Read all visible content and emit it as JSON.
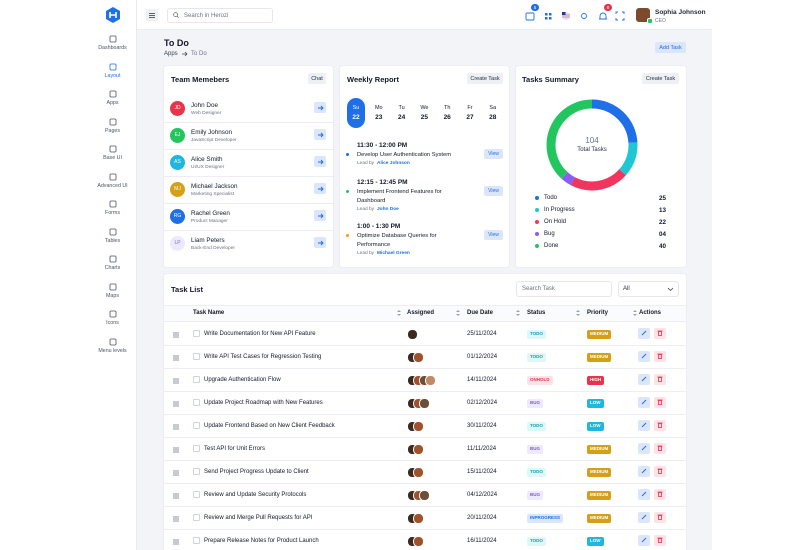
{
  "sidebar": {
    "items": [
      "Dashboards",
      "Layout",
      "Apps",
      "Pages",
      "Base UI",
      "Advanced UI",
      "Forms",
      "Tables",
      "Charts",
      "Maps",
      "Icons",
      "Menu levels"
    ],
    "active": 1
  },
  "header": {
    "search_placeholder": "Search in Herozi",
    "cart_badge": 5,
    "bell_badge": 8,
    "user": {
      "name": "Sophia Johnson",
      "role": "CEO"
    }
  },
  "page": {
    "title": "To Do",
    "breadcrumb": [
      "Apps",
      "To Do"
    ],
    "add_button": "Add Task"
  },
  "team": {
    "title": "Team Memebers",
    "button": "Chat",
    "members": [
      {
        "initials": "JD",
        "name": "John Doe",
        "role": "Web Designer",
        "color": "#e8334a"
      },
      {
        "initials": "EJ",
        "name": "Emily Johnson",
        "role": "JavaScript Developer",
        "color": "#22c55e"
      },
      {
        "initials": "AS",
        "name": "Alice Smith",
        "role": "UI/UX Designer",
        "color": "#1fb6e0"
      },
      {
        "initials": "MJ",
        "name": "Michael Jackson",
        "role": "Marketing Specialist",
        "color": "#d4a017"
      },
      {
        "initials": "RG",
        "name": "Rachel Green",
        "role": "Product Manager",
        "color": "#1e6fe8"
      },
      {
        "initials": "LP",
        "name": "Liam Peters",
        "role": "Back-End Developer",
        "color": "#ede9fe"
      }
    ]
  },
  "weekly": {
    "title": "Weekly Report",
    "button": "Create Task",
    "days": [
      {
        "day": "Su",
        "date": 22
      },
      {
        "day": "Mo",
        "date": 23
      },
      {
        "day": "Tu",
        "date": 24
      },
      {
        "day": "We",
        "date": 25
      },
      {
        "day": "Th",
        "date": 26
      },
      {
        "day": "Fr",
        "date": 27
      },
      {
        "day": "Sa",
        "date": 28
      }
    ],
    "events": [
      {
        "time": "11:30 - 12:00 PM",
        "title": "Develop User Authentication System",
        "lead_prefix": "Lead by",
        "lead": "Alice Johnson",
        "button": "View",
        "color": "#1e6fe8"
      },
      {
        "time": "12:15 - 12:45 PM",
        "title": "Implement Frontend Features for Dashboard",
        "lead_prefix": "Lead by",
        "lead": "John Doe",
        "button": "View",
        "color": "#22c55e"
      },
      {
        "time": "1:00 - 1:30 PM",
        "title": "Optimize Database Queries for Performance",
        "lead_prefix": "Lead by",
        "lead": "Michael Green",
        "button": "View",
        "color": "#f59e0b"
      }
    ]
  },
  "summary": {
    "title": "Tasks Summary",
    "button": "Create Task",
    "total": 104,
    "total_label": "Total Tasks",
    "categories": [
      "Todo",
      "In Progress",
      "On Hold",
      "Bug",
      "Done"
    ],
    "values": [
      25,
      13,
      22,
      4,
      40
    ],
    "value_labels": [
      "25",
      "13",
      "22",
      "04",
      "40"
    ],
    "colors": [
      "#1e6fe8",
      "#1fc7d4",
      "#f0365e",
      "#8b5cf6",
      "#22c55e"
    ]
  },
  "task_list": {
    "title": "Task List",
    "search_placeholder": "Search Task",
    "filter": "All",
    "columns": [
      "Task Name",
      "Assigned",
      "Due Date",
      "Status",
      "Priority",
      "Actions"
    ],
    "rows": [
      {
        "name": "Write Documentation for New API Feature",
        "due": "25/11/2024",
        "status": "TODO",
        "priority": "MEDIUM"
      },
      {
        "name": "Write API Test Cases for Regression Testing",
        "due": "01/12/2024",
        "status": "TODO",
        "priority": "MEDIUM"
      },
      {
        "name": "Upgrade Authentication Flow",
        "due": "14/11/2024",
        "status": "ONHOLD",
        "priority": "HIGH"
      },
      {
        "name": "Update Project Roadmap with New Features",
        "due": "02/12/2024",
        "status": "BUG",
        "priority": "LOW"
      },
      {
        "name": "Update Frontend Based on New Client Feedback",
        "due": "30/11/2024",
        "status": "TODO",
        "priority": "LOW"
      },
      {
        "name": "Test API for Unit Errors",
        "due": "11/11/2024",
        "status": "BUG",
        "priority": "MEDIUM"
      },
      {
        "name": "Send Project Progress Update to Client",
        "due": "15/11/2024",
        "status": "TODO",
        "priority": "MEDIUM"
      },
      {
        "name": "Review and Update Security Protocols",
        "due": "04/12/2024",
        "status": "BUG",
        "priority": "MEDIUM"
      },
      {
        "name": "Review and Merge Pull Requests for API",
        "due": "20/11/2024",
        "status": "INPROGRESS",
        "priority": "MEDIUM"
      },
      {
        "name": "Prepare Release Notes for Product Launch",
        "due": "16/11/2024",
        "status": "TODO",
        "priority": "LOW"
      }
    ]
  }
}
